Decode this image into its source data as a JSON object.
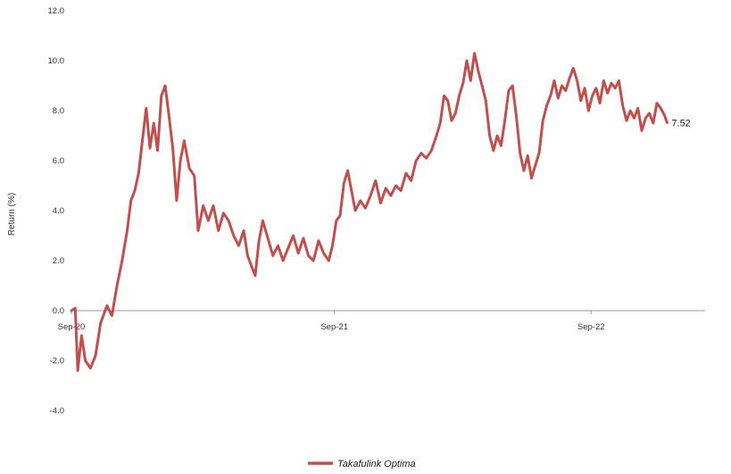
{
  "chart_data": {
    "type": "line",
    "title": "",
    "xlabel": "",
    "ylabel": "Return (%)",
    "ylim": [
      -4.0,
      12.0
    ],
    "yticks": [
      "12.0",
      "10.0",
      "8.0",
      "6.0",
      "4.0",
      "2.0",
      "0.0",
      "-2.0",
      "-4.0"
    ],
    "xticks": [
      "Sep-20",
      "Sep-21",
      "Sep-22"
    ],
    "grid": false,
    "legend_position": "bottom",
    "end_label": "7.52",
    "series": [
      {
        "name": "Takafulink Optima",
        "color": "#c0504d",
        "x_start": "2020-09",
        "x_end": "2023-05",
        "points": [
          [
            0.0,
            0.0
          ],
          [
            0.006,
            0.1
          ],
          [
            0.01,
            -2.4
          ],
          [
            0.016,
            -1.0
          ],
          [
            0.022,
            -2.0
          ],
          [
            0.03,
            -2.3
          ],
          [
            0.038,
            -1.8
          ],
          [
            0.046,
            -0.5
          ],
          [
            0.056,
            0.2
          ],
          [
            0.064,
            -0.2
          ],
          [
            0.072,
            1.0
          ],
          [
            0.08,
            2.0
          ],
          [
            0.088,
            3.2
          ],
          [
            0.094,
            4.4
          ],
          [
            0.1,
            4.8
          ],
          [
            0.106,
            5.5
          ],
          [
            0.112,
            6.8
          ],
          [
            0.118,
            8.1
          ],
          [
            0.124,
            6.5
          ],
          [
            0.13,
            7.5
          ],
          [
            0.136,
            6.4
          ],
          [
            0.142,
            8.6
          ],
          [
            0.148,
            9.0
          ],
          [
            0.154,
            7.8
          ],
          [
            0.16,
            6.5
          ],
          [
            0.166,
            4.4
          ],
          [
            0.172,
            6.0
          ],
          [
            0.178,
            6.8
          ],
          [
            0.186,
            5.7
          ],
          [
            0.194,
            5.4
          ],
          [
            0.2,
            3.2
          ],
          [
            0.208,
            4.2
          ],
          [
            0.216,
            3.6
          ],
          [
            0.224,
            4.2
          ],
          [
            0.232,
            3.2
          ],
          [
            0.24,
            3.9
          ],
          [
            0.248,
            3.6
          ],
          [
            0.256,
            3.0
          ],
          [
            0.264,
            2.6
          ],
          [
            0.272,
            3.2
          ],
          [
            0.278,
            2.2
          ],
          [
            0.284,
            1.8
          ],
          [
            0.29,
            1.4
          ],
          [
            0.296,
            2.8
          ],
          [
            0.302,
            3.6
          ],
          [
            0.31,
            2.9
          ],
          [
            0.318,
            2.2
          ],
          [
            0.326,
            2.6
          ],
          [
            0.334,
            2.0
          ],
          [
            0.342,
            2.5
          ],
          [
            0.35,
            3.0
          ],
          [
            0.358,
            2.3
          ],
          [
            0.366,
            2.9
          ],
          [
            0.374,
            2.2
          ],
          [
            0.382,
            2.0
          ],
          [
            0.39,
            2.8
          ],
          [
            0.398,
            2.3
          ],
          [
            0.406,
            2.0
          ],
          [
            0.412,
            2.6
          ],
          [
            0.418,
            3.6
          ],
          [
            0.424,
            3.8
          ],
          [
            0.43,
            5.1
          ],
          [
            0.436,
            5.6
          ],
          [
            0.442,
            4.8
          ],
          [
            0.448,
            4.0
          ],
          [
            0.456,
            4.4
          ],
          [
            0.464,
            4.1
          ],
          [
            0.472,
            4.6
          ],
          [
            0.48,
            5.2
          ],
          [
            0.488,
            4.3
          ],
          [
            0.496,
            4.9
          ],
          [
            0.504,
            4.6
          ],
          [
            0.512,
            5.0
          ],
          [
            0.52,
            4.8
          ],
          [
            0.528,
            5.5
          ],
          [
            0.536,
            5.2
          ],
          [
            0.544,
            6.0
          ],
          [
            0.552,
            6.3
          ],
          [
            0.56,
            6.1
          ],
          [
            0.568,
            6.4
          ],
          [
            0.576,
            7.0
          ],
          [
            0.582,
            7.5
          ],
          [
            0.588,
            8.6
          ],
          [
            0.594,
            8.4
          ],
          [
            0.6,
            7.6
          ],
          [
            0.606,
            7.9
          ],
          [
            0.612,
            8.6
          ],
          [
            0.618,
            9.1
          ],
          [
            0.624,
            10.0
          ],
          [
            0.63,
            9.2
          ],
          [
            0.636,
            10.3
          ],
          [
            0.642,
            9.6
          ],
          [
            0.648,
            9.0
          ],
          [
            0.654,
            8.4
          ],
          [
            0.66,
            7.0
          ],
          [
            0.666,
            6.4
          ],
          [
            0.672,
            7.0
          ],
          [
            0.678,
            6.6
          ],
          [
            0.684,
            7.6
          ],
          [
            0.69,
            8.8
          ],
          [
            0.696,
            9.0
          ],
          [
            0.702,
            7.8
          ],
          [
            0.708,
            6.3
          ],
          [
            0.714,
            5.6
          ],
          [
            0.72,
            6.2
          ],
          [
            0.726,
            5.3
          ],
          [
            0.732,
            5.8
          ],
          [
            0.738,
            6.3
          ],
          [
            0.744,
            7.6
          ],
          [
            0.75,
            8.2
          ],
          [
            0.756,
            8.6
          ],
          [
            0.762,
            9.2
          ],
          [
            0.768,
            8.5
          ],
          [
            0.774,
            9.0
          ],
          [
            0.78,
            8.8
          ],
          [
            0.786,
            9.3
          ],
          [
            0.792,
            9.7
          ],
          [
            0.798,
            9.2
          ],
          [
            0.804,
            8.4
          ],
          [
            0.81,
            8.9
          ],
          [
            0.816,
            8.0
          ],
          [
            0.822,
            8.6
          ],
          [
            0.828,
            8.9
          ],
          [
            0.834,
            8.3
          ],
          [
            0.84,
            9.2
          ],
          [
            0.846,
            8.7
          ],
          [
            0.852,
            9.1
          ],
          [
            0.858,
            8.9
          ],
          [
            0.864,
            9.2
          ],
          [
            0.87,
            8.2
          ],
          [
            0.876,
            7.6
          ],
          [
            0.882,
            8.0
          ],
          [
            0.888,
            7.7
          ],
          [
            0.894,
            8.1
          ],
          [
            0.9,
            7.2
          ],
          [
            0.906,
            7.7
          ],
          [
            0.912,
            7.9
          ],
          [
            0.918,
            7.5
          ],
          [
            0.924,
            8.3
          ],
          [
            0.93,
            8.1
          ],
          [
            0.936,
            7.8
          ],
          [
            0.94,
            7.52
          ]
        ]
      }
    ]
  }
}
